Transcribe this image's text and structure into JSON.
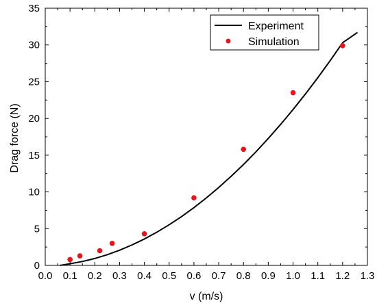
{
  "chart_data": {
    "type": "scatter",
    "title": "",
    "xlabel": "v (m/s)",
    "ylabel": "Drag force (N)",
    "xlim": [
      0.0,
      1.3
    ],
    "ylim": [
      0,
      35
    ],
    "x_ticks": [
      "0.0",
      "0.1",
      "0.2",
      "0.3",
      "0.4",
      "0.5",
      "0.6",
      "0.7",
      "0.8",
      "0.9",
      "1.0",
      "1.1",
      "1.2",
      "1.3"
    ],
    "y_ticks": [
      "0",
      "5",
      "10",
      "15",
      "20",
      "25",
      "30",
      "35"
    ],
    "grid": false,
    "legend_position": "top-right",
    "series": [
      {
        "name": "Experiment",
        "kind": "line",
        "color": "#000000",
        "x": [
          0.06,
          0.1,
          0.15,
          0.2,
          0.25,
          0.3,
          0.35,
          0.4,
          0.45,
          0.5,
          0.55,
          0.6,
          0.65,
          0.7,
          0.75,
          0.8,
          0.85,
          0.9,
          0.95,
          1.0,
          1.05,
          1.1,
          1.15,
          1.2,
          1.26
        ],
        "y": [
          0.0,
          0.22,
          0.53,
          0.94,
          1.45,
          2.07,
          2.78,
          3.59,
          4.51,
          5.53,
          6.64,
          7.86,
          9.18,
          10.6,
          12.12,
          13.73,
          15.45,
          17.27,
          19.19,
          21.21,
          23.33,
          25.55,
          27.87,
          30.3,
          31.7
        ]
      },
      {
        "name": "Simulation",
        "kind": "scatter",
        "color": "#e8141c",
        "x": [
          0.1,
          0.14,
          0.22,
          0.27,
          0.4,
          0.6,
          0.8,
          1.0,
          1.2
        ],
        "y": [
          0.8,
          1.3,
          2.0,
          3.0,
          4.3,
          9.2,
          15.8,
          23.5,
          29.9
        ]
      }
    ]
  }
}
